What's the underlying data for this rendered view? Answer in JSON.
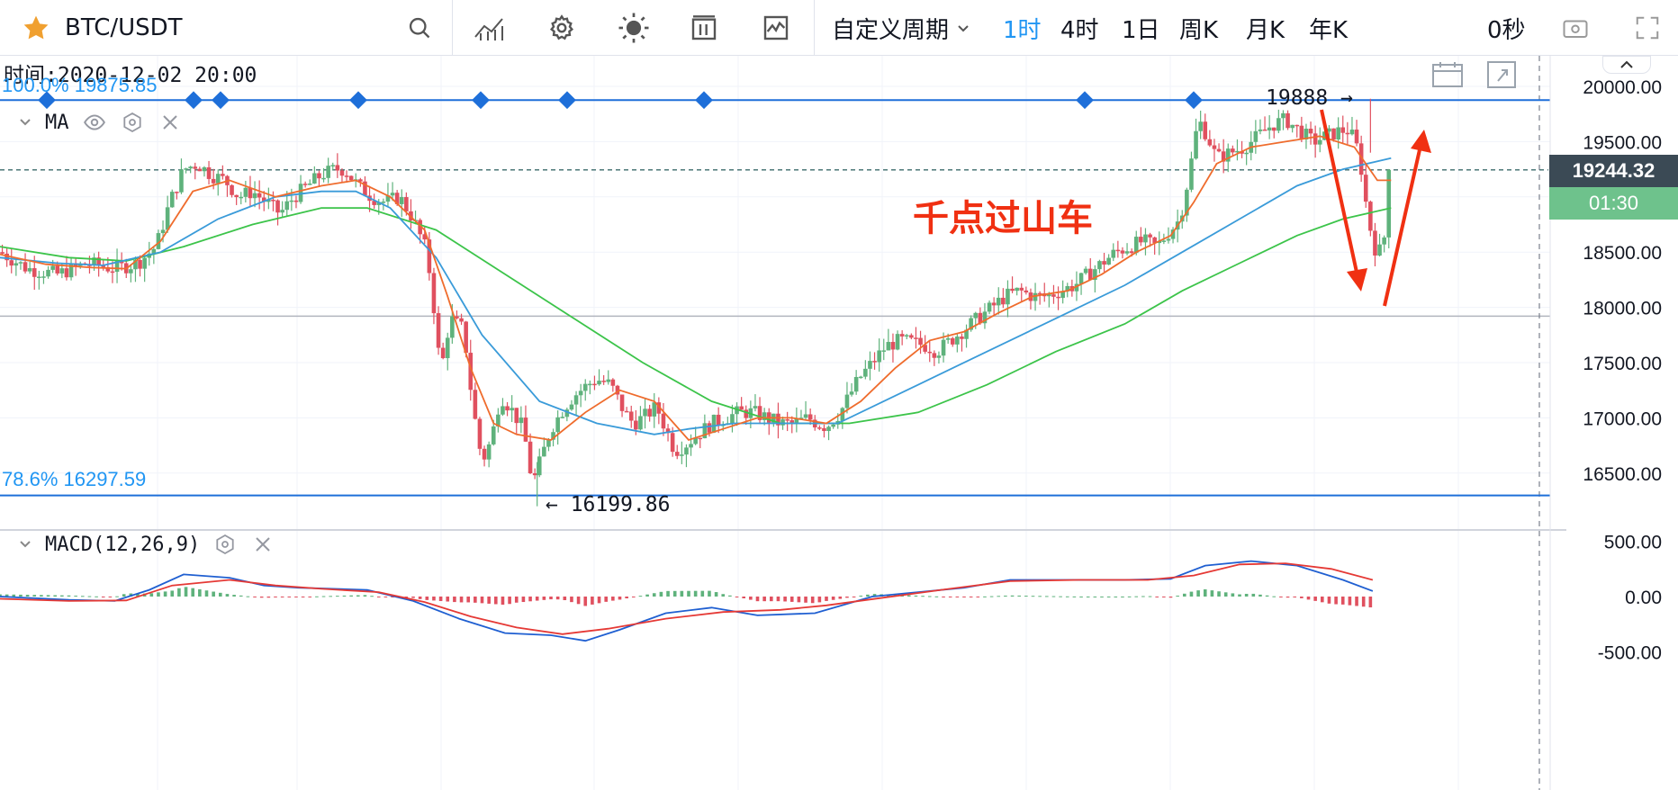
{
  "header": {
    "symbol": "BTC/USDT",
    "custom_period": "自定义周期",
    "periods": [
      "1时",
      "4时",
      "1日",
      "周K",
      "月K",
      "年K"
    ],
    "active_period": "1时",
    "countdown_seconds": "0秒"
  },
  "legend": {
    "time_label": "时间:2020-12-02 20:00",
    "ma_label": "MA",
    "macd_label": "MACD(12,26,9)"
  },
  "fib": {
    "top_label": "100.0% 19875.85",
    "bottom_label": "78.6% 16297.59",
    "top_price": 19875.85,
    "bottom_price": 16297.59
  },
  "annotations": {
    "high_label": "19888 →",
    "low_label": "← 16199.86",
    "title_overlay": "千点过山车"
  },
  "price_axis": {
    "ticks": [
      "20000.00",
      "19500.00",
      "19000.00",
      "18500.00",
      "18000.00",
      "17500.00",
      "17000.00",
      "16500.00"
    ],
    "current_price": "19244.32",
    "countdown": "01:30",
    "macd_ticks": [
      "500.00",
      "0.00",
      "-500.00"
    ]
  },
  "colors": {
    "up": "#5fb27c",
    "down": "#e0505f",
    "ma_fast": "#ef6c2d",
    "ma_mid": "#3a9bd9",
    "ma_slow": "#3cc44a",
    "fib_line": "#1e6fd9",
    "macd_line": "#1f5fd1",
    "signal_line": "#e53935",
    "accent": "#2196f3",
    "arrow": "#f03012"
  },
  "chart_data": {
    "type": "candlestick",
    "symbol": "BTC/USDT",
    "interval": "1时",
    "price_range": [
      16100,
      20120
    ],
    "close_points": [
      [
        0,
        18500
      ],
      [
        12,
        18350
      ],
      [
        25,
        18300
      ],
      [
        38,
        18400
      ],
      [
        50,
        18350
      ],
      [
        60,
        18400
      ],
      [
        68,
        18550
      ],
      [
        74,
        18950
      ],
      [
        80,
        19250
      ],
      [
        86,
        19300
      ],
      [
        92,
        19200
      ],
      [
        98,
        19150
      ],
      [
        104,
        19000
      ],
      [
        110,
        19050
      ],
      [
        116,
        18950
      ],
      [
        122,
        18850
      ],
      [
        128,
        19000
      ],
      [
        134,
        19100
      ],
      [
        140,
        19200
      ],
      [
        146,
        19250
      ],
      [
        150,
        19250
      ],
      [
        156,
        19100
      ],
      [
        162,
        19000
      ],
      [
        168,
        18950
      ],
      [
        174,
        19000
      ],
      [
        180,
        18800
      ],
      [
        186,
        18500
      ],
      [
        189,
        18000
      ],
      [
        192,
        17400
      ],
      [
        196,
        17900
      ],
      [
        202,
        17800
      ],
      [
        206,
        17100
      ],
      [
        210,
        16600
      ],
      [
        214,
        16800
      ],
      [
        218,
        17200
      ],
      [
        222,
        17100
      ],
      [
        228,
        16900
      ],
      [
        232,
        16400
      ],
      [
        236,
        16650
      ],
      [
        240,
        16900
      ],
      [
        246,
        17100
      ],
      [
        250,
        17200
      ],
      [
        256,
        17300
      ],
      [
        260,
        17350
      ],
      [
        266,
        17300
      ],
      [
        272,
        17050
      ],
      [
        276,
        16950
      ],
      [
        280,
        17000
      ],
      [
        286,
        17100
      ],
      [
        290,
        16900
      ],
      [
        294,
        16700
      ],
      [
        298,
        16750
      ],
      [
        304,
        16850
      ],
      [
        310,
        16950
      ],
      [
        316,
        17000
      ],
      [
        322,
        17050
      ],
      [
        328,
        17050
      ],
      [
        334,
        17000
      ],
      [
        340,
        16950
      ],
      [
        346,
        16950
      ],
      [
        352,
        17000
      ],
      [
        356,
        16950
      ],
      [
        360,
        16920
      ],
      [
        366,
        17050
      ],
      [
        370,
        17200
      ],
      [
        374,
        17350
      ],
      [
        380,
        17500
      ],
      [
        386,
        17650
      ],
      [
        392,
        17700
      ],
      [
        398,
        17680
      ],
      [
        404,
        17650
      ],
      [
        408,
        17600
      ],
      [
        414,
        17700
      ],
      [
        420,
        17800
      ],
      [
        426,
        17900
      ],
      [
        432,
        18000
      ],
      [
        438,
        18100
      ],
      [
        444,
        18150
      ],
      [
        450,
        18100
      ],
      [
        456,
        18100
      ],
      [
        462,
        18150
      ],
      [
        468,
        18200
      ],
      [
        474,
        18300
      ],
      [
        480,
        18400
      ],
      [
        486,
        18500
      ],
      [
        492,
        18550
      ],
      [
        498,
        18600
      ],
      [
        504,
        18550
      ],
      [
        510,
        18700
      ],
      [
        514,
        18800
      ],
      [
        518,
        19200
      ],
      [
        522,
        19700
      ],
      [
        526,
        19550
      ],
      [
        530,
        19350
      ],
      [
        536,
        19400
      ],
      [
        542,
        19450
      ],
      [
        548,
        19550
      ],
      [
        554,
        19650
      ],
      [
        560,
        19700
      ],
      [
        566,
        19600
      ],
      [
        572,
        19500
      ],
      [
        578,
        19550
      ],
      [
        584,
        19600
      ],
      [
        588,
        19600
      ],
      [
        592,
        19400
      ],
      [
        596,
        18800
      ],
      [
        600,
        18450
      ],
      [
        604,
        18700
      ],
      [
        606,
        19244
      ]
    ],
    "moving_averages": {
      "fast": [
        [
          0,
          18480
        ],
        [
          20,
          18390
        ],
        [
          40,
          18360
        ],
        [
          55,
          18350
        ],
        [
          70,
          18600
        ],
        [
          84,
          19050
        ],
        [
          100,
          19150
        ],
        [
          120,
          19000
        ],
        [
          140,
          19100
        ],
        [
          155,
          19150
        ],
        [
          170,
          19000
        ],
        [
          185,
          18700
        ],
        [
          195,
          18100
        ],
        [
          205,
          17450
        ],
        [
          215,
          16950
        ],
        [
          225,
          16850
        ],
        [
          240,
          16800
        ],
        [
          255,
          17050
        ],
        [
          270,
          17250
        ],
        [
          285,
          17150
        ],
        [
          300,
          16800
        ],
        [
          315,
          16900
        ],
        [
          330,
          17000
        ],
        [
          345,
          17000
        ],
        [
          360,
          16950
        ],
        [
          375,
          17150
        ],
        [
          390,
          17450
        ],
        [
          405,
          17700
        ],
        [
          420,
          17780
        ],
        [
          435,
          17950
        ],
        [
          450,
          18100
        ],
        [
          465,
          18150
        ],
        [
          480,
          18300
        ],
        [
          495,
          18500
        ],
        [
          510,
          18650
        ],
        [
          520,
          18950
        ],
        [
          530,
          19300
        ],
        [
          545,
          19450
        ],
        [
          560,
          19500
        ],
        [
          575,
          19550
        ],
        [
          590,
          19450
        ],
        [
          600,
          19150
        ],
        [
          606,
          19150
        ]
      ],
      "mid": [
        [
          0,
          18450
        ],
        [
          25,
          18400
        ],
        [
          45,
          18380
        ],
        [
          70,
          18500
        ],
        [
          95,
          18800
        ],
        [
          120,
          19000
        ],
        [
          140,
          19050
        ],
        [
          155,
          19050
        ],
        [
          170,
          18900
        ],
        [
          190,
          18450
        ],
        [
          210,
          17750
        ],
        [
          235,
          17150
        ],
        [
          260,
          16950
        ],
        [
          285,
          16850
        ],
        [
          300,
          16900
        ],
        [
          320,
          16950
        ],
        [
          345,
          16950
        ],
        [
          365,
          16950
        ],
        [
          390,
          17200
        ],
        [
          415,
          17450
        ],
        [
          440,
          17700
        ],
        [
          465,
          17950
        ],
        [
          490,
          18200
        ],
        [
          515,
          18500
        ],
        [
          540,
          18800
        ],
        [
          565,
          19100
        ],
        [
          585,
          19250
        ],
        [
          606,
          19350
        ]
      ],
      "slow": [
        [
          0,
          18550
        ],
        [
          30,
          18450
        ],
        [
          55,
          18420
        ],
        [
          80,
          18550
        ],
        [
          110,
          18750
        ],
        [
          140,
          18900
        ],
        [
          160,
          18900
        ],
        [
          190,
          18700
        ],
        [
          220,
          18300
        ],
        [
          250,
          17900
        ],
        [
          280,
          17500
        ],
        [
          310,
          17150
        ],
        [
          340,
          16950
        ],
        [
          370,
          16950
        ],
        [
          400,
          17050
        ],
        [
          430,
          17300
        ],
        [
          460,
          17600
        ],
        [
          490,
          17850
        ],
        [
          515,
          18150
        ],
        [
          540,
          18400
        ],
        [
          565,
          18650
        ],
        [
          585,
          18800
        ],
        [
          606,
          18900
        ]
      ]
    },
    "annotations": {
      "high": 19888,
      "low": 16199.86,
      "current": 19244.32
    },
    "macd": {
      "label": "MACD(12,26,9)",
      "range": [
        -570,
        530
      ],
      "macd_line": [
        [
          0,
          0
        ],
        [
          30,
          -30
        ],
        [
          50,
          -40
        ],
        [
          65,
          60
        ],
        [
          80,
          200
        ],
        [
          100,
          170
        ],
        [
          115,
          100
        ],
        [
          130,
          80
        ],
        [
          160,
          60
        ],
        [
          180,
          -40
        ],
        [
          200,
          -200
        ],
        [
          220,
          -330
        ],
        [
          240,
          -350
        ],
        [
          255,
          -400
        ],
        [
          270,
          -300
        ],
        [
          290,
          -150
        ],
        [
          310,
          -100
        ],
        [
          330,
          -170
        ],
        [
          355,
          -150
        ],
        [
          380,
          0
        ],
        [
          400,
          40
        ],
        [
          420,
          80
        ],
        [
          440,
          150
        ],
        [
          460,
          150
        ],
        [
          490,
          150
        ],
        [
          510,
          160
        ],
        [
          525,
          280
        ],
        [
          545,
          320
        ],
        [
          565,
          280
        ],
        [
          585,
          150
        ],
        [
          598,
          50
        ]
      ],
      "signal_line": [
        [
          0,
          -20
        ],
        [
          30,
          -40
        ],
        [
          55,
          -35
        ],
        [
          75,
          100
        ],
        [
          100,
          150
        ],
        [
          120,
          100
        ],
        [
          140,
          70
        ],
        [
          165,
          40
        ],
        [
          185,
          -50
        ],
        [
          205,
          -180
        ],
        [
          225,
          -280
        ],
        [
          245,
          -340
        ],
        [
          265,
          -290
        ],
        [
          290,
          -200
        ],
        [
          315,
          -140
        ],
        [
          340,
          -120
        ],
        [
          360,
          -80
        ],
        [
          385,
          -10
        ],
        [
          410,
          60
        ],
        [
          440,
          140
        ],
        [
          470,
          150
        ],
        [
          500,
          150
        ],
        [
          520,
          190
        ],
        [
          540,
          290
        ],
        [
          560,
          300
        ],
        [
          580,
          250
        ],
        [
          598,
          150
        ]
      ]
    }
  }
}
